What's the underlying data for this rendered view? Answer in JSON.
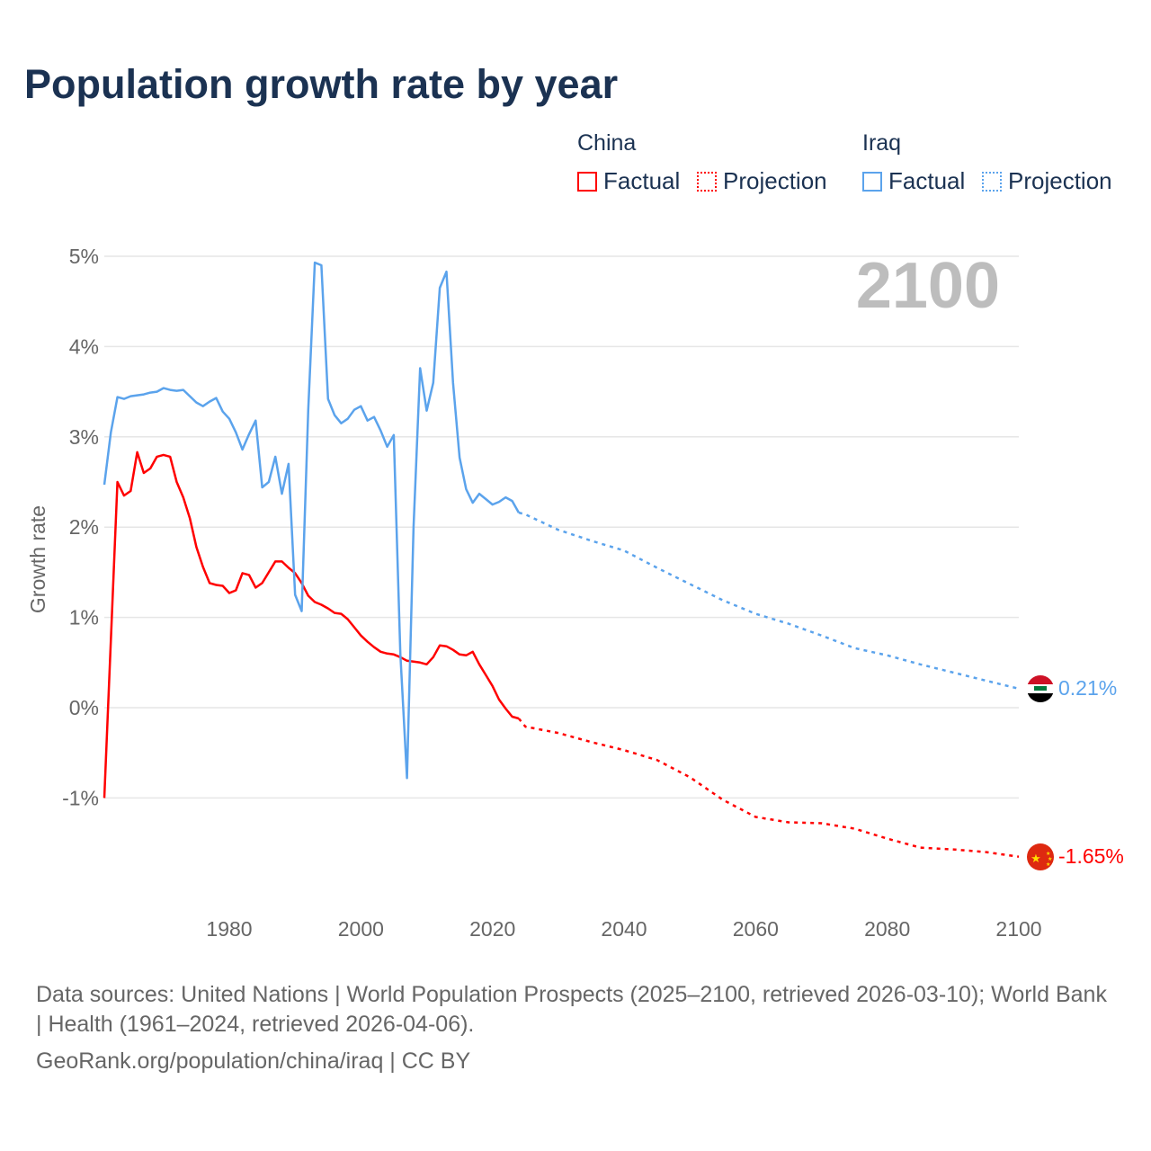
{
  "title": "Population growth rate by year",
  "legend": {
    "groups": [
      {
        "name": "China",
        "color": "#ff0000",
        "factual": "Factual",
        "projection": "Projection"
      },
      {
        "name": "Iraq",
        "color": "#5ba3ec",
        "factual": "Factual",
        "projection": "Projection"
      }
    ]
  },
  "year_label": "2100",
  "end_labels": {
    "iraq": "0.21%",
    "china": "-1.65%"
  },
  "footer": {
    "sources": "Data sources: United Nations | World Population Prospects (2025–2100, retrieved 2026-03-10); World Bank | Health (1961–2024, retrieved 2026-04-06).",
    "credit": "GeoRank.org/population/china/iraq | CC BY"
  },
  "chart_data": {
    "type": "line",
    "title": "Population growth rate by year",
    "ylabel": "Growth rate",
    "xlabel": "",
    "xlim": [
      1961,
      2100
    ],
    "ylim": [
      -1.9,
      5
    ],
    "yticks": [
      -1,
      0,
      1,
      2,
      3,
      4,
      5
    ],
    "ytick_labels": [
      "-1%",
      "0%",
      "1%",
      "2%",
      "3%",
      "4%",
      "5%"
    ],
    "xticks": [
      1980,
      2000,
      2020,
      2040,
      2060,
      2080,
      2100
    ],
    "xtick_labels": [
      "1980",
      "2000",
      "2020",
      "2040",
      "2060",
      "2080",
      "2100"
    ],
    "grid": true,
    "legend_position": "top-right",
    "series": [
      {
        "name": "China",
        "kind": "factual",
        "color": "#ff0000",
        "start_year": 1961,
        "values": [
          -1.0,
          0.75,
          2.5,
          2.35,
          2.4,
          2.83,
          2.6,
          2.65,
          2.78,
          2.8,
          2.78,
          2.5,
          2.33,
          2.1,
          1.78,
          1.56,
          1.38,
          1.36,
          1.35,
          1.27,
          1.3,
          1.49,
          1.47,
          1.33,
          1.38,
          1.5,
          1.62,
          1.62,
          1.55,
          1.49,
          1.38,
          1.24,
          1.17,
          1.14,
          1.1,
          1.05,
          1.04,
          0.98,
          0.89,
          0.8,
          0.73,
          0.67,
          0.62,
          0.6,
          0.59,
          0.56,
          0.52,
          0.51,
          0.5,
          0.48,
          0.56,
          0.69,
          0.68,
          0.64,
          0.59,
          0.58,
          0.62,
          0.48,
          0.36,
          0.24,
          0.09,
          -0.01,
          -0.1,
          -0.12
        ]
      },
      {
        "name": "China",
        "kind": "projection",
        "color": "#ff0000",
        "x": [
          2024,
          2025,
          2030,
          2035,
          2040,
          2045,
          2050,
          2055,
          2060,
          2065,
          2070,
          2075,
          2080,
          2085,
          2090,
          2095,
          2100
        ],
        "values": [
          -0.12,
          -0.21,
          -0.28,
          -0.38,
          -0.47,
          -0.58,
          -0.77,
          -1.02,
          -1.21,
          -1.27,
          -1.28,
          -1.34,
          -1.45,
          -1.55,
          -1.57,
          -1.6,
          -1.65
        ]
      },
      {
        "name": "Iraq",
        "kind": "factual",
        "color": "#5ba3ec",
        "start_year": 1961,
        "values": [
          2.47,
          3.05,
          3.44,
          3.42,
          3.45,
          3.46,
          3.47,
          3.49,
          3.5,
          3.54,
          3.52,
          3.51,
          3.52,
          3.45,
          3.38,
          3.34,
          3.39,
          3.43,
          3.28,
          3.2,
          3.05,
          2.86,
          3.03,
          3.18,
          2.44,
          2.5,
          2.78,
          2.37,
          2.7,
          1.25,
          1.07,
          3.3,
          4.93,
          4.9,
          3.42,
          3.24,
          3.15,
          3.2,
          3.3,
          3.34,
          3.18,
          3.22,
          3.07,
          2.89,
          3.02,
          0.6,
          -0.78,
          2.0,
          3.76,
          3.29,
          3.6,
          4.65,
          4.83,
          3.6,
          2.77,
          2.42,
          2.27,
          2.37,
          2.31,
          2.25,
          2.28,
          2.33,
          2.29,
          2.16
        ]
      },
      {
        "name": "Iraq",
        "kind": "projection",
        "color": "#5ba3ec",
        "x": [
          2024,
          2025,
          2030,
          2035,
          2040,
          2045,
          2050,
          2055,
          2060,
          2065,
          2070,
          2075,
          2080,
          2085,
          2090,
          2095,
          2100
        ],
        "values": [
          2.16,
          2.14,
          1.97,
          1.85,
          1.74,
          1.55,
          1.37,
          1.19,
          1.04,
          0.93,
          0.8,
          0.66,
          0.58,
          0.48,
          0.39,
          0.3,
          0.21
        ]
      }
    ]
  }
}
